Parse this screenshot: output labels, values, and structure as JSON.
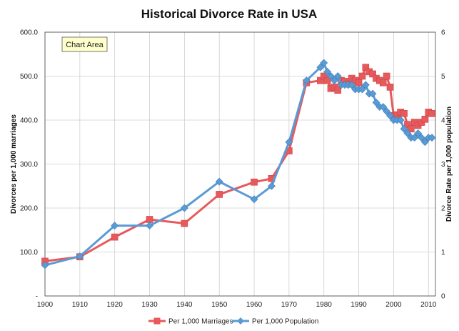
{
  "chart_data": {
    "type": "line",
    "title": "Historical Divorce Rate in USA",
    "ylabel_left": "Divorces per 1,000 marriages",
    "ylabel_right": "Divorce Rate per 1,000 population",
    "xlabel": "",
    "x_ticks": [
      1900,
      1910,
      1920,
      1930,
      1940,
      1950,
      1960,
      1970,
      1980,
      1990,
      2000,
      2010
    ],
    "xlim": [
      1900,
      2012
    ],
    "ylim_left": [
      0,
      600
    ],
    "ylim_right": [
      0,
      6
    ],
    "y_ticks_left": [
      "-",
      "100.0",
      "200.0",
      "300.0",
      "400.0",
      "500.0",
      "600.0"
    ],
    "y_ticks_right": [
      "0",
      "1",
      "2",
      "3",
      "4",
      "5",
      "6"
    ],
    "grid": true,
    "legend_position": "bottom",
    "tooltip": "Chart Area",
    "series": [
      {
        "name": "Per 1,000 Marriages",
        "axis": "left",
        "color": "#e8595c",
        "marker": "square",
        "points": [
          [
            1900,
            79
          ],
          [
            1910,
            89
          ],
          [
            1920,
            134
          ],
          [
            1930,
            174
          ],
          [
            1940,
            165
          ],
          [
            1950,
            231
          ],
          [
            1960,
            259
          ],
          [
            1965,
            267
          ],
          [
            1970,
            330
          ],
          [
            1975,
            485
          ],
          [
            1979,
            490
          ],
          [
            1980,
            500
          ],
          [
            1981,
            490
          ],
          [
            1982,
            472
          ],
          [
            1983,
            475
          ],
          [
            1984,
            468
          ],
          [
            1985,
            490
          ],
          [
            1986,
            488
          ],
          [
            1987,
            482
          ],
          [
            1988,
            495
          ],
          [
            1989,
            490
          ],
          [
            1990,
            485
          ],
          [
            1991,
            500
          ],
          [
            1992,
            520
          ],
          [
            1993,
            510
          ],
          [
            1994,
            505
          ],
          [
            1995,
            495
          ],
          [
            1996,
            490
          ],
          [
            1997,
            485
          ],
          [
            1998,
            500
          ],
          [
            1999,
            475
          ],
          [
            2000,
            410
          ],
          [
            2001,
            412
          ],
          [
            2002,
            418
          ],
          [
            2003,
            415
          ],
          [
            2004,
            390
          ],
          [
            2005,
            380
          ],
          [
            2006,
            395
          ],
          [
            2007,
            388
          ],
          [
            2008,
            395
          ],
          [
            2009,
            402
          ],
          [
            2010,
            418
          ],
          [
            2011,
            415
          ]
        ]
      },
      {
        "name": "Per 1,000 Population",
        "axis": "right",
        "color": "#5a9bd5",
        "marker": "diamond",
        "points": [
          [
            1900,
            0.7
          ],
          [
            1910,
            0.9
          ],
          [
            1920,
            1.6
          ],
          [
            1930,
            1.6
          ],
          [
            1940,
            2.0
          ],
          [
            1950,
            2.6
          ],
          [
            1960,
            2.2
          ],
          [
            1965,
            2.5
          ],
          [
            1970,
            3.5
          ],
          [
            1975,
            4.9
          ],
          [
            1979,
            5.2
          ],
          [
            1980,
            5.3
          ],
          [
            1981,
            5.1
          ],
          [
            1982,
            5.0
          ],
          [
            1983,
            4.9
          ],
          [
            1984,
            5.0
          ],
          [
            1985,
            4.8
          ],
          [
            1986,
            4.8
          ],
          [
            1987,
            4.8
          ],
          [
            1988,
            4.8
          ],
          [
            1989,
            4.7
          ],
          [
            1990,
            4.7
          ],
          [
            1991,
            4.7
          ],
          [
            1992,
            4.8
          ],
          [
            1993,
            4.6
          ],
          [
            1994,
            4.6
          ],
          [
            1995,
            4.4
          ],
          [
            1996,
            4.3
          ],
          [
            1997,
            4.3
          ],
          [
            1998,
            4.2
          ],
          [
            1999,
            4.1
          ],
          [
            2000,
            4.0
          ],
          [
            2001,
            4.0
          ],
          [
            2002,
            4.0
          ],
          [
            2003,
            3.8
          ],
          [
            2004,
            3.7
          ],
          [
            2005,
            3.6
          ],
          [
            2006,
            3.6
          ],
          [
            2007,
            3.7
          ],
          [
            2008,
            3.6
          ],
          [
            2009,
            3.5
          ],
          [
            2010,
            3.6
          ],
          [
            2011,
            3.6
          ]
        ]
      }
    ]
  }
}
